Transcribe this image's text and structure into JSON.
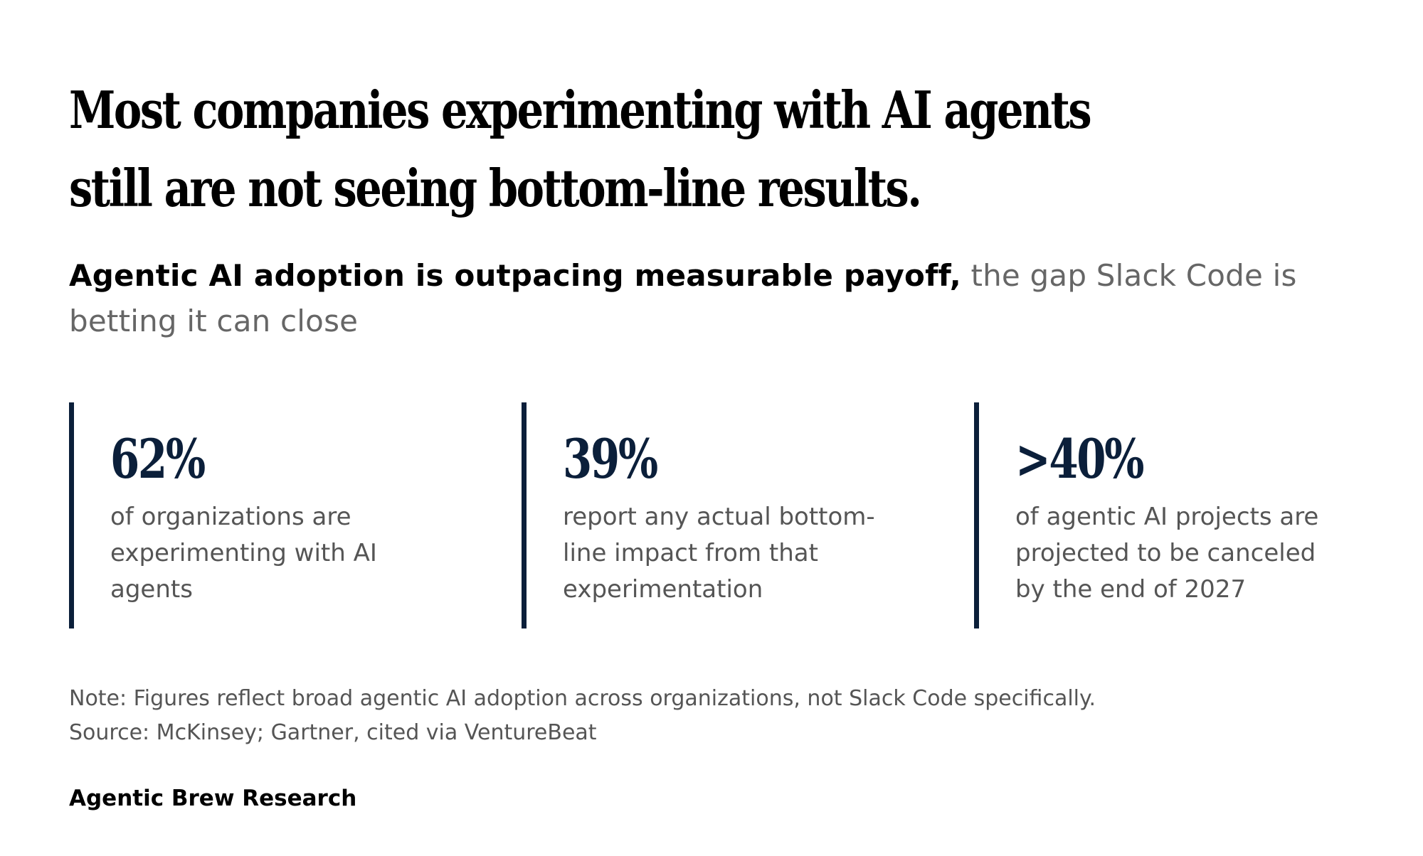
{
  "headline": "Most companies experimenting with AI agents still are not seeing bottom-line results.",
  "subhead": {
    "lead": "Agentic AI adoption is outpacing measurable payoff,",
    "rest": " the gap Slack Code is betting it can close"
  },
  "stats": [
    {
      "value": "62%",
      "description": "of organizations are experimenting with AI agents"
    },
    {
      "value": "39%",
      "description": "report any actual bottom-line impact from that experimentation"
    },
    {
      "value": ">40%",
      "description": "of agentic AI projects are projected to be canceled by the end of 2027"
    }
  ],
  "note": "Note: Figures reflect broad agentic AI adoption across organizations, not Slack Code specifically.",
  "source": "Source: McKinsey; Gartner, cited via VentureBeat",
  "brand": "Agentic Brew Research",
  "colors": {
    "accent": "#0b1f3a",
    "muted_text": "#555555",
    "text": "#000000"
  }
}
